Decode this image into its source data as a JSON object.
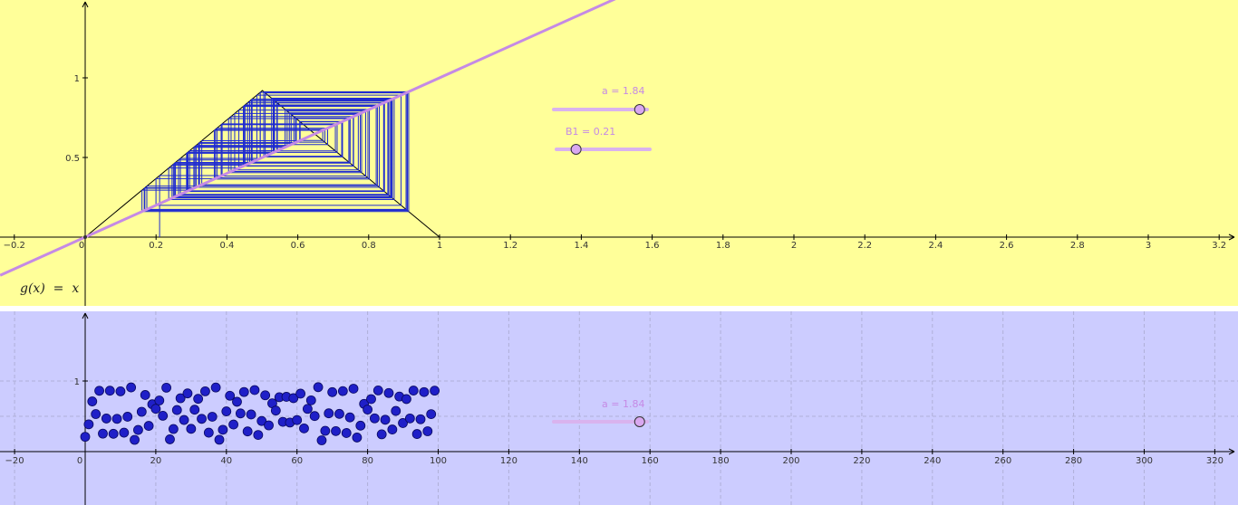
{
  "colors": {
    "view1_bg": "#ffff99",
    "view2_bg": "#ccccff",
    "identity_line": "#c58ae5",
    "cobweb": "#1f2bd1",
    "tent": "#000000",
    "points": "#1f1fc8",
    "slider_track": "#d9b3ee",
    "slider_knob": "#d9a8f0"
  },
  "view1": {
    "function_label": "g(x)  =  x",
    "x_ticks": [
      "−0.2",
      "0",
      "0.2",
      "0.4",
      "0.6",
      "0.8",
      "1",
      "1.2",
      "1.4",
      "1.6",
      "1.8",
      "2",
      "2.2",
      "2.4",
      "2.6",
      "2.8",
      "3",
      "3.2"
    ],
    "y_ticks": [
      "0.5",
      "1"
    ],
    "slider_a": {
      "label": "a = 1.84",
      "value": 1.84
    },
    "slider_b1": {
      "label": "B1 = 0.21",
      "value": 0.21
    }
  },
  "view2": {
    "x_ticks": [
      "−20",
      "0",
      "20",
      "40",
      "60",
      "80",
      "100",
      "120",
      "140",
      "160",
      "180",
      "200",
      "220",
      "240",
      "260",
      "280",
      "300",
      "320"
    ],
    "y_ticks": [
      "1"
    ],
    "slider_a": {
      "label": "a = 1.84",
      "value": 1.84
    },
    "points_n": 100
  },
  "chart_data": [
    {
      "type": "line",
      "title": "",
      "description_of_series": "cobweb of tent map",
      "series": [
        {
          "values": "y = x (identity line)"
        },
        {
          "values": "tent map y = a·min(x, 1−x), a = 1.84"
        }
      ],
      "x_range": [
        -0.24,
        3.24
      ],
      "y_range": [
        -0.2,
        1.45
      ],
      "grid": false,
      "iteration_start": 0.21,
      "a": 1.84
    },
    {
      "type": "scatter",
      "title": "",
      "x_range": [
        -23,
        327
      ],
      "y_range": [
        -0.15,
        1.3
      ],
      "grid": true,
      "iteration_start": 0.21,
      "a": 1.84,
      "n_points": 100
    }
  ]
}
